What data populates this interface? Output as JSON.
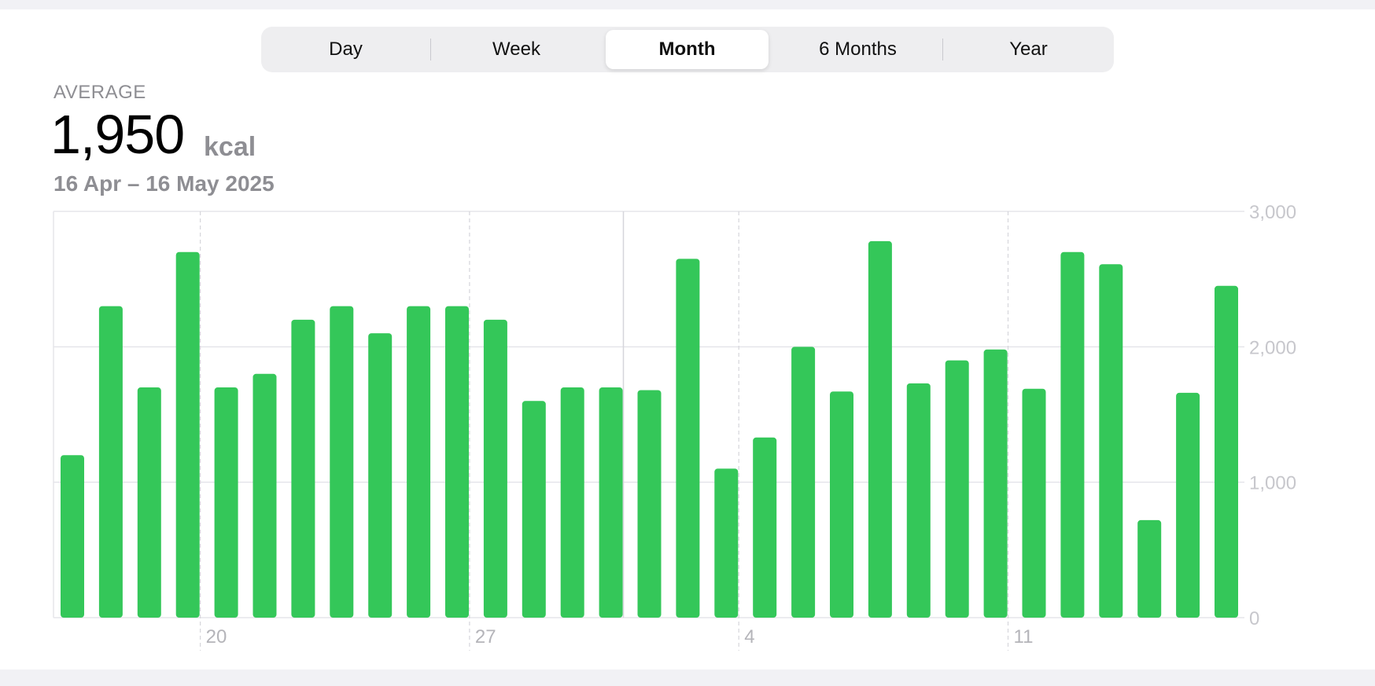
{
  "segmented_control": {
    "options": [
      "Day",
      "Week",
      "Month",
      "6 Months",
      "Year"
    ],
    "selected": "Month"
  },
  "summary": {
    "label": "AVERAGE",
    "value": "1,950",
    "unit": "kcal",
    "date_range": "16 Apr – 16 May 2025"
  },
  "colors": {
    "bar": "#34c759",
    "grid": "#e5e5ea",
    "tick_text": "#c7c7cc"
  },
  "chart_data": {
    "type": "bar",
    "categories": [
      "16 Apr",
      "17 Apr",
      "18 Apr",
      "19 Apr",
      "20 Apr",
      "21 Apr",
      "22 Apr",
      "23 Apr",
      "24 Apr",
      "25 Apr",
      "26 Apr",
      "27 Apr",
      "28 Apr",
      "29 Apr",
      "30 Apr",
      "1 May",
      "2 May",
      "3 May",
      "4 May",
      "5 May",
      "6 May",
      "7 May",
      "8 May",
      "9 May",
      "10 May",
      "11 May",
      "12 May",
      "13 May",
      "14 May",
      "15 May",
      "16 May"
    ],
    "values": [
      1200,
      2300,
      1700,
      2700,
      1700,
      1800,
      2200,
      2300,
      2100,
      2300,
      2300,
      2200,
      1600,
      1700,
      1700,
      1680,
      2650,
      1100,
      1330,
      2000,
      1670,
      2780,
      1730,
      1900,
      1980,
      1690,
      2700,
      2610,
      720,
      1660,
      2450
    ],
    "ylim": [
      0,
      3000
    ],
    "yticks": [
      "0",
      "1,000",
      "2,000",
      "3,000"
    ],
    "xtick_labels": [
      "20",
      "27",
      "4",
      "11"
    ],
    "xlabel": "",
    "ylabel": "",
    "grid": true
  }
}
